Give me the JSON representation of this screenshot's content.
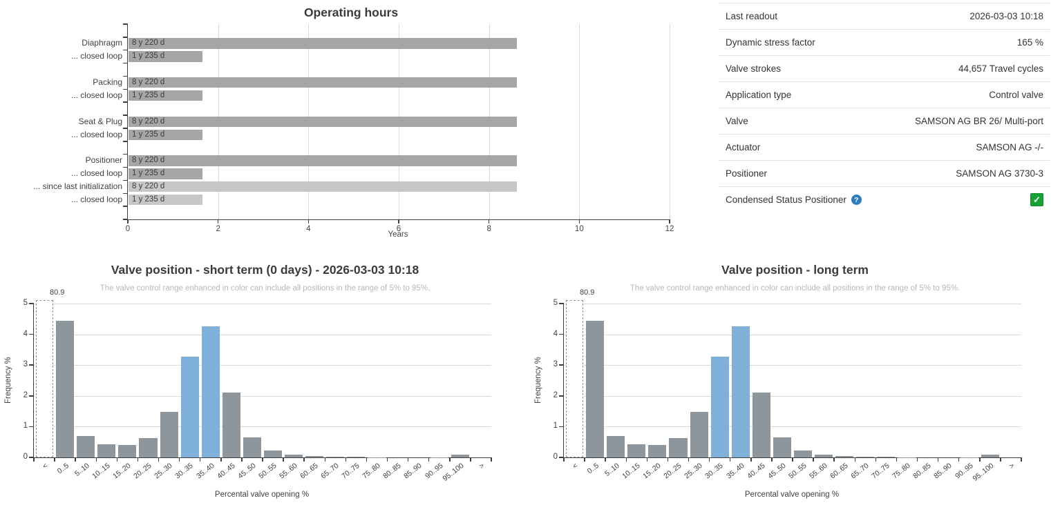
{
  "chart_data": [
    {
      "type": "bar",
      "orientation": "horizontal",
      "title": "Operating hours",
      "xlabel": "Years",
      "xlim": [
        0,
        12
      ],
      "x_ticks": [
        0,
        2,
        4,
        6,
        8,
        10,
        12
      ],
      "grid": "vertical",
      "legend": "none",
      "bars": [
        {
          "category": "Diaphragm",
          "duration_label": "8 y 220 d",
          "years": 8.6,
          "shade": "dark",
          "gap_before": false
        },
        {
          "category": "... closed loop",
          "duration_label": "1 y 235 d",
          "years": 1.64,
          "shade": "dark",
          "gap_before": false
        },
        {
          "category": "Packing",
          "duration_label": "8 y 220 d",
          "years": 8.6,
          "shade": "dark",
          "gap_before": true
        },
        {
          "category": "... closed loop",
          "duration_label": "1 y 235 d",
          "years": 1.64,
          "shade": "dark",
          "gap_before": false
        },
        {
          "category": "Seat & Plug",
          "duration_label": "8 y 220 d",
          "years": 8.6,
          "shade": "dark",
          "gap_before": true
        },
        {
          "category": "... closed loop",
          "duration_label": "1 y 235 d",
          "years": 1.64,
          "shade": "dark",
          "gap_before": false
        },
        {
          "category": "Positioner",
          "duration_label": "8 y 220 d",
          "years": 8.6,
          "shade": "dark",
          "gap_before": true
        },
        {
          "category": "... closed loop",
          "duration_label": "1 y 235 d",
          "years": 1.64,
          "shade": "dark",
          "gap_before": false
        },
        {
          "category": "... since last initialization",
          "duration_label": "8 y 220 d",
          "years": 8.6,
          "shade": "light",
          "gap_before": false
        },
        {
          "category": "... closed loop",
          "duration_label": "1 y 235 d",
          "years": 1.64,
          "shade": "light",
          "gap_before": false
        }
      ],
      "colors": {
        "dark": "#a6a6a6",
        "light": "#c7c7c7",
        "axis": "#3e3e3e",
        "grid": "#d9d9d9"
      }
    },
    {
      "type": "bar",
      "title": "Valve position - short term (0 days) - 2026-03-03 10:18",
      "subtitle": "The valve control range enhanced in color can include all positions in the range of 5% to 95%.",
      "xlabel": "Percental valve opening %",
      "ylabel": "Frequency %",
      "ylim": [
        0,
        5
      ],
      "y_ticks": [
        0,
        1,
        2,
        3,
        4,
        5
      ],
      "grid": "horizontal",
      "categories": [
        "<",
        "0..5",
        "5..10",
        "10..15",
        "15..20",
        "20..25",
        "25..30",
        "30..35",
        "35..40",
        "40..45",
        "45..50",
        "50..55",
        "55..60",
        "60..65",
        "65..70",
        "70..75",
        "75..80",
        "80..85",
        "85..90",
        "90..95",
        "95..100",
        ">"
      ],
      "values": [
        80.9,
        4.45,
        0.7,
        0.42,
        0.4,
        0.63,
        1.48,
        3.27,
        4.25,
        2.1,
        0.66,
        0.22,
        0.08,
        0.05,
        0.03,
        0.03,
        0.01,
        0,
        0,
        0.01,
        0.09,
        0
      ],
      "highlight_indices": [
        7,
        8
      ],
      "clipped_bar": {
        "index": 0,
        "category": "<",
        "value": 80.9,
        "label": "80.9"
      },
      "colors": {
        "bar": "#8d959d",
        "highlight": "#7fb0da",
        "clipped_border": "#8f8f8f",
        "axis": "#3e3e3e",
        "grid": "#d9d9d9"
      }
    },
    {
      "type": "bar",
      "title": "Valve position - long term",
      "subtitle": "The valve control range enhanced in color can include all positions in the range of 5% to 95%.",
      "xlabel": "Percental valve opening %",
      "ylabel": "Frequency %",
      "ylim": [
        0,
        5
      ],
      "y_ticks": [
        0,
        1,
        2,
        3,
        4,
        5
      ],
      "grid": "horizontal",
      "categories": [
        "<",
        "0..5",
        "5..10",
        "10..15",
        "15..20",
        "20..25",
        "25..30",
        "30..35",
        "35..40",
        "40..45",
        "45..50",
        "50..55",
        "55..60",
        "60..65",
        "65..70",
        "70..75",
        "75..80",
        "80..85",
        "85..90",
        "90..95",
        "95..100",
        ">"
      ],
      "values": [
        80.9,
        4.45,
        0.7,
        0.42,
        0.4,
        0.63,
        1.48,
        3.27,
        4.25,
        2.1,
        0.66,
        0.22,
        0.08,
        0.05,
        0.03,
        0.03,
        0.01,
        0,
        0,
        0.01,
        0.09,
        0
      ],
      "highlight_indices": [
        7,
        8
      ],
      "clipped_bar": {
        "index": 0,
        "category": "<",
        "value": 80.9,
        "label": "80.9"
      },
      "colors": {
        "bar": "#8d959d",
        "highlight": "#7fb0da",
        "clipped_border": "#8f8f8f",
        "axis": "#3e3e3e",
        "grid": "#d9d9d9"
      }
    }
  ],
  "info_table": {
    "rows": [
      {
        "label": "Last readout",
        "value": "2026-03-03 10:18"
      },
      {
        "label": "Dynamic stress factor",
        "value": "165 %"
      },
      {
        "label": "Valve strokes",
        "value": "44,657 Travel cycles"
      },
      {
        "label": "Application type",
        "value": "Control valve"
      },
      {
        "label": "Valve",
        "value": "SAMSON AG BR 26/ Multi-port"
      },
      {
        "label": "Actuator",
        "value": "SAMSON AG -/-"
      },
      {
        "label": "Positioner",
        "value": "SAMSON AG 3730-3"
      },
      {
        "label": "Condensed Status Positioner",
        "value": "checked",
        "help_icon": {
          "glyph": "?",
          "fill": "#2b7cbd"
        },
        "checkbox": {
          "checked": true,
          "check_glyph": "✓",
          "fill": "#18a236",
          "border": "#0e8a26"
        }
      }
    ]
  }
}
